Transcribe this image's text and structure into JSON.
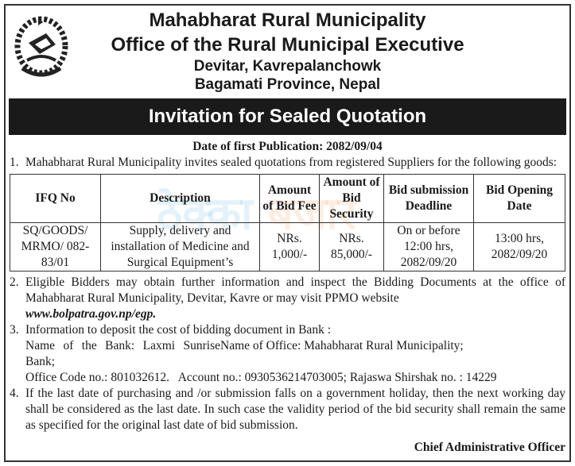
{
  "header": {
    "line1": "Mahabharat Rural Municipality",
    "line2": "Office of the Rural Municipal Executive",
    "line3": "Devitar, Kavrepalanchowk",
    "line4": "Bagamati Province, Nepal"
  },
  "emblem": {
    "icon": "nepal-government-emblem"
  },
  "banner": "Invitation for Sealed Quotation",
  "publication_date": "Date of first Publication: 2082/09/04",
  "items": {
    "n1": "1.",
    "t1": "Mahabharat Rural Municipality invites sealed quotations from registered Suppliers for the following goods:",
    "n2": "2.",
    "t2a": "Eligible Bidders may obtain further information and inspect the Bidding Documents at the office of Mahabharat Rural Municipality, Devitar, Kavre or may visit PPMO website",
    "t2b": "www.bolpatra.gov.np/egp.",
    "n3": "3.",
    "t3a": "Information to deposit the cost of bidding document in Bank :",
    "t3b1": "Name of the Bank: Laxmi Sunrise Bank;",
    "t3b2": "Name of Office: Mahabharat Rural Municipality;",
    "t3c": "Office Code no.: 801032612.   Account no.: 0930536214703005; Rajaswa Shirshak no. : 14229",
    "n4": "4.",
    "t4": "If the last date of purchasing and /or submission falls on a government holiday, then the next working day shall be considered as the last date. In such case the validity period of the bid security shall remain the same as specified for the original last date of bid submission."
  },
  "table": {
    "headers": [
      "IFQ No",
      "Description",
      "Amount of Bid Fee",
      "Amount of Bid Security",
      "Bid submission Deadline",
      "Bid Opening Date"
    ],
    "rows": [
      [
        "SQ/GOODS/ MRMO/ 082-83/01",
        "Supply, delivery and installation of Medicine and Surgical Equipment’s",
        "NRs. 1,000/-",
        "NRs. 85,000/-",
        "On or before 12:00 hrs, 2082/09/20",
        "13:00 hrs, 2082/09/20"
      ]
    ]
  },
  "watermark": {
    "part1": "ठेक्का",
    "part2": "बजार"
  },
  "signature": "Chief Administrative Officer"
}
